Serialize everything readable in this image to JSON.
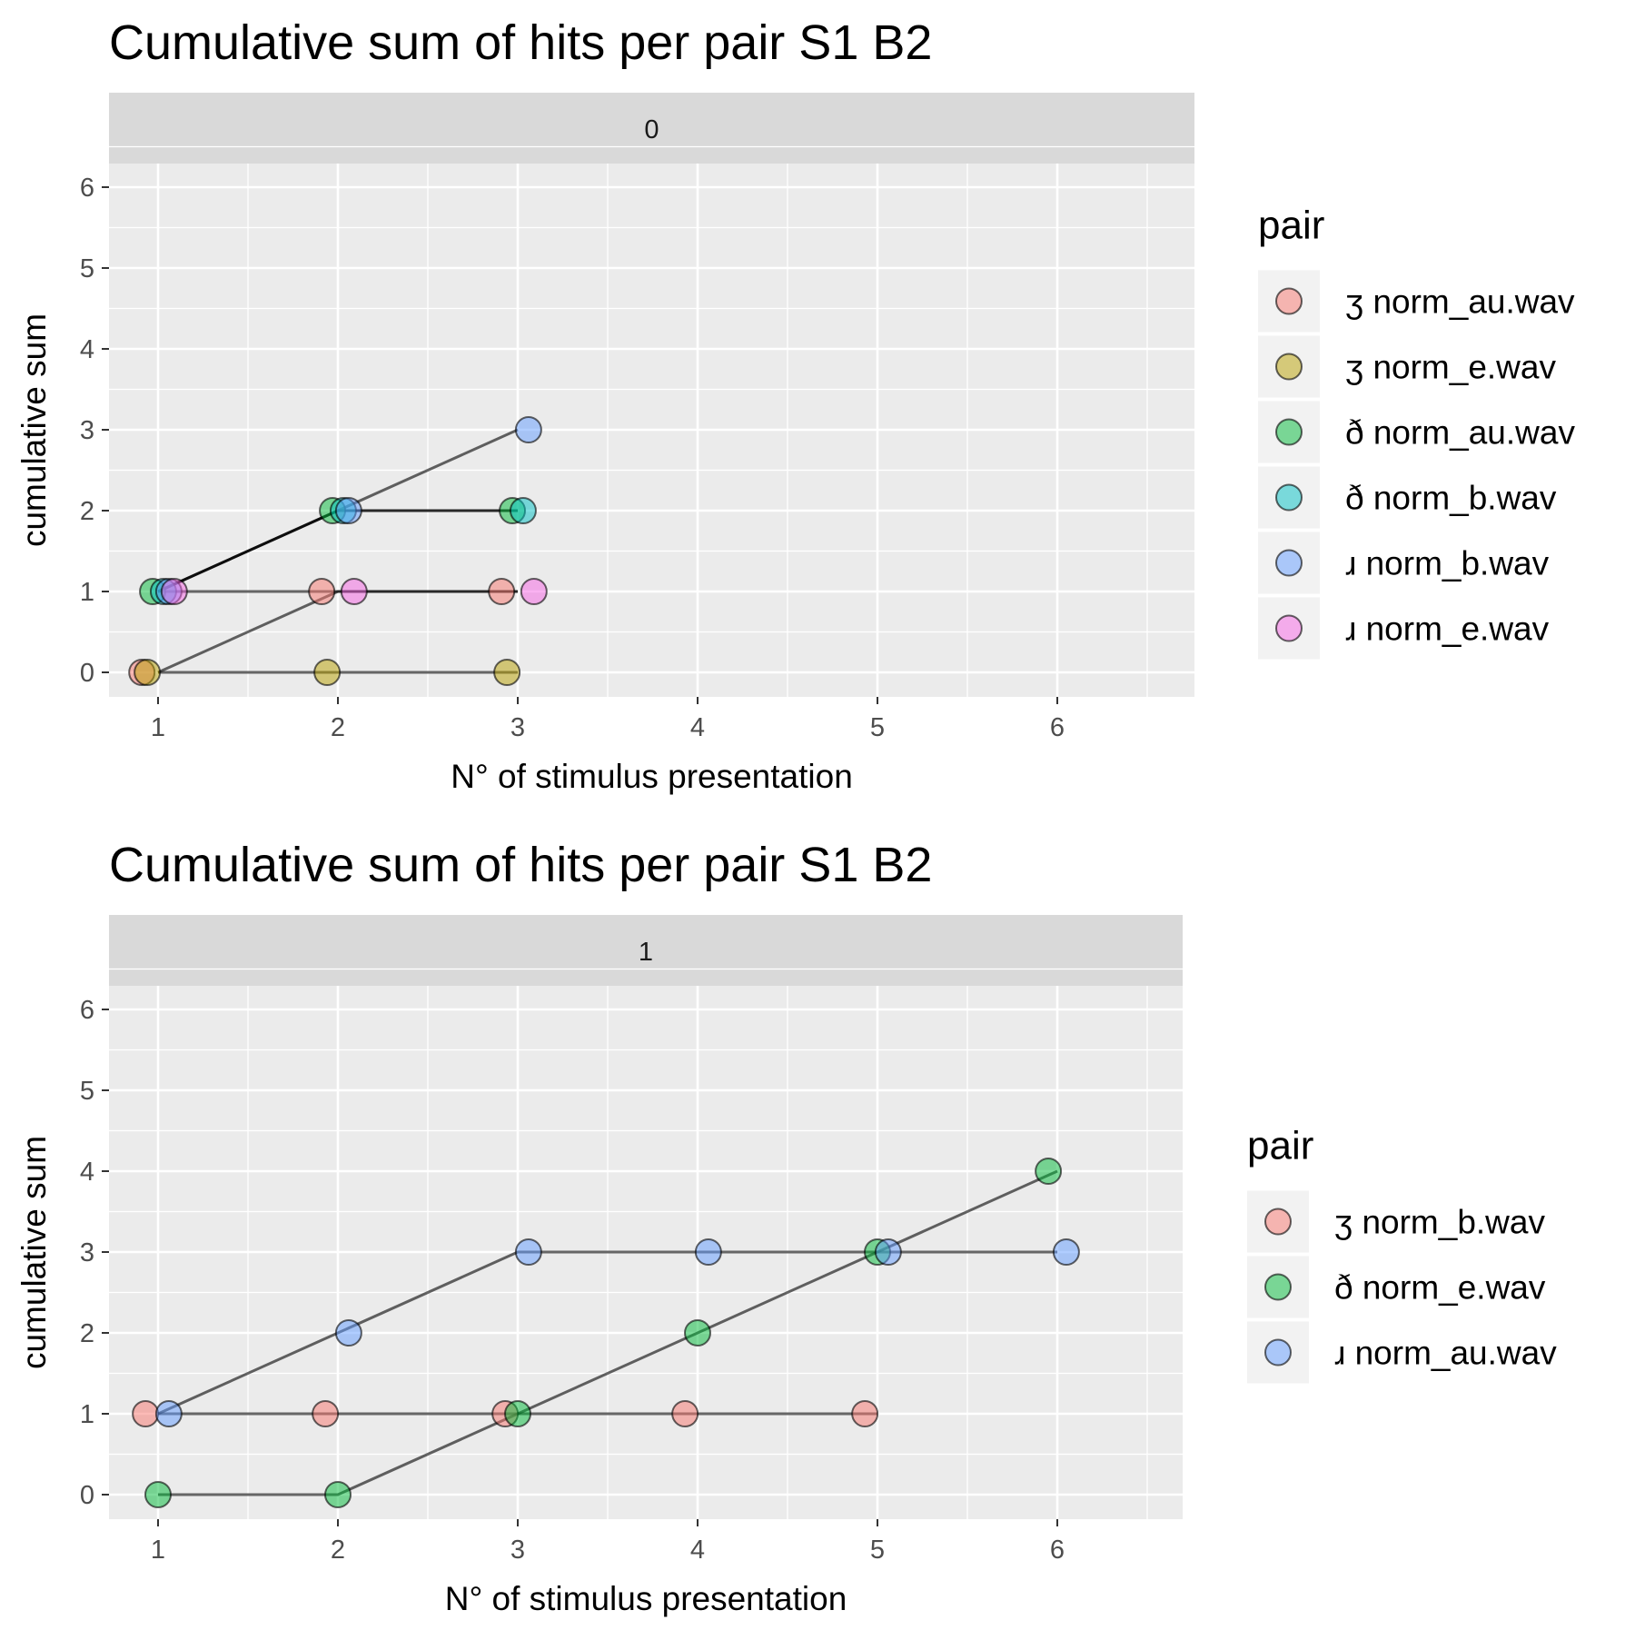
{
  "chart_data": [
    {
      "type": "line",
      "title": "Cumulative sum of hits per pair S1 B2",
      "facet_label": "0",
      "xlabel": "N° of stimulus presentation",
      "ylabel": "cumulative sum",
      "xlim": [
        1,
        6
      ],
      "ylim": [
        0,
        6
      ],
      "x_ticks": [
        "1",
        "2",
        "3",
        "4",
        "5",
        "6"
      ],
      "y_ticks": [
        "0",
        "1",
        "2",
        "3",
        "4",
        "5",
        "6"
      ],
      "grid": true,
      "legend": {
        "title": "pair",
        "placement": "right"
      },
      "series": [
        {
          "name": "ʒ norm_au.wav",
          "color": "#F8766D",
          "x": [
            1,
            2,
            3
          ],
          "y": [
            0,
            1,
            1
          ]
        },
        {
          "name": "ʒ norm_e.wav",
          "color": "#B79F00",
          "x": [
            1,
            2,
            3
          ],
          "y": [
            0,
            0,
            0
          ]
        },
        {
          "name": "ð norm_au.wav",
          "color": "#00BA38",
          "x": [
            1,
            2,
            3
          ],
          "y": [
            1,
            2,
            2
          ]
        },
        {
          "name": "ð norm_b.wav",
          "color": "#00BFC4",
          "x": [
            1,
            2,
            3
          ],
          "y": [
            1,
            2,
            2
          ]
        },
        {
          "name": "ɹ norm_b.wav",
          "color": "#619CFF",
          "x": [
            1,
            2,
            3
          ],
          "y": [
            1,
            2,
            3
          ]
        },
        {
          "name": "ɹ norm_e.wav",
          "color": "#F564E3",
          "x": [
            1,
            2,
            3
          ],
          "y": [
            1,
            1,
            1
          ]
        }
      ]
    },
    {
      "type": "line",
      "title": "Cumulative sum of hits per pair S1 B2",
      "facet_label": "1",
      "xlabel": "N° of stimulus presentation",
      "ylabel": "cumulative sum",
      "xlim": [
        1,
        6
      ],
      "ylim": [
        0,
        6
      ],
      "x_ticks": [
        "1",
        "2",
        "3",
        "4",
        "5",
        "6"
      ],
      "y_ticks": [
        "0",
        "1",
        "2",
        "3",
        "4",
        "5",
        "6"
      ],
      "grid": true,
      "legend": {
        "title": "pair",
        "placement": "right"
      },
      "series": [
        {
          "name": "ʒ norm_b.wav",
          "color": "#F8766D",
          "x": [
            1,
            2,
            3,
            4,
            5
          ],
          "y": [
            1,
            1,
            1,
            1,
            1
          ]
        },
        {
          "name": "ð norm_e.wav",
          "color": "#00BA38",
          "x": [
            1,
            2,
            3,
            4,
            5,
            6
          ],
          "y": [
            0,
            0,
            1,
            2,
            3,
            4
          ]
        },
        {
          "name": "ɹ norm_au.wav",
          "color": "#619CFF",
          "x": [
            1,
            2,
            3,
            4,
            5,
            6
          ],
          "y": [
            1,
            2,
            3,
            3,
            3,
            3
          ]
        }
      ]
    }
  ]
}
